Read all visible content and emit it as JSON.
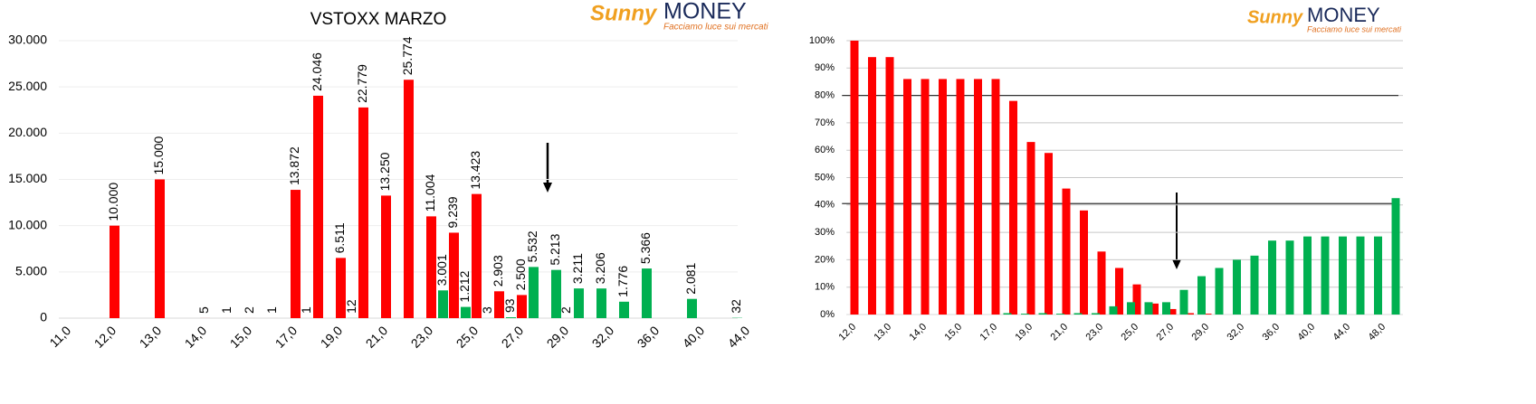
{
  "chart_data": [
    {
      "type": "bar",
      "title": "VSTOXX MARZO",
      "logo": {
        "brand": "Sunny",
        "name": "MONEY",
        "tagline": "Facciamo luce sui mercati"
      },
      "categories": [
        "11,0",
        null,
        "12,0",
        null,
        "13,0",
        null,
        "14,0",
        null,
        "15,0",
        null,
        "17,0",
        null,
        "19,0",
        null,
        "21,0",
        null,
        "23,0",
        null,
        "25,0",
        null,
        "27,0",
        null,
        "29,0",
        null,
        "32,0",
        null,
        "36,0",
        null,
        "40,0",
        null,
        "44,0"
      ],
      "series": [
        {
          "color": "#ff0000",
          "values": [
            null,
            null,
            10000,
            null,
            15000,
            null,
            5,
            1,
            2,
            1,
            13872,
            24046,
            6511,
            22779,
            13250,
            25774,
            11004,
            9239,
            13423,
            2903,
            2500,
            null,
            2,
            null,
            null,
            null,
            null,
            null,
            null,
            null,
            null
          ],
          "value_labels": [
            null,
            null,
            "10.000",
            null,
            "15.000",
            null,
            "5",
            "1",
            "2",
            "1",
            "13.872",
            "24.046",
            "6.511",
            "22.779",
            "13.250",
            "25.774",
            "11.004",
            "9.239",
            "13.423",
            "2.903",
            "2.500",
            null,
            "2",
            null,
            null,
            null,
            null,
            null,
            null,
            null,
            null
          ]
        },
        {
          "color": "#00b050",
          "values": [
            null,
            null,
            null,
            null,
            null,
            null,
            null,
            null,
            null,
            null,
            1,
            null,
            12,
            null,
            null,
            null,
            3001,
            1212,
            3,
            93,
            5532,
            5213,
            3211,
            3206,
            1776,
            5366,
            null,
            2081,
            null,
            32,
            null
          ],
          "value_labels": [
            null,
            null,
            null,
            null,
            null,
            null,
            null,
            null,
            null,
            null,
            "1",
            null,
            "12",
            null,
            null,
            null,
            "3.001",
            "1.212",
            "3",
            "93",
            "5.532",
            "5.213",
            "3.211",
            "3.206",
            "1.776",
            "5.366",
            null,
            "2.081",
            null,
            "32",
            null
          ]
        }
      ],
      "ylim": [
        0,
        30000
      ],
      "yticks": [
        0,
        {
          "value": 5000,
          "label": "5.000"
        },
        {
          "value": 10000,
          "label": "10.000"
        },
        {
          "value": 15000,
          "label": "15.000"
        },
        {
          "value": 20000,
          "label": "20.000"
        },
        {
          "value": 25000,
          "label": "25.000"
        },
        {
          "value": 30000,
          "label": "30.000"
        }
      ],
      "grid": true
    },
    {
      "type": "bar",
      "logo": {
        "brand": "Sunny",
        "name": "MONEY",
        "tagline": "Facciamo luce sui mercati"
      },
      "categories": [
        "12,0",
        null,
        "13,0",
        null,
        "14,0",
        null,
        "15,0",
        null,
        "17,0",
        null,
        "19,0",
        null,
        "21,0",
        null,
        "23,0",
        null,
        "25,0",
        null,
        "27,0",
        null,
        "29,0",
        null,
        "32,0",
        null,
        "36,0",
        null,
        "40,0",
        null,
        "44,0",
        null,
        "48,0"
      ],
      "series": [
        {
          "color": "#ff0000",
          "values": [
            100,
            94,
            94,
            86,
            86,
            86,
            86,
            86,
            86,
            78,
            63,
            59,
            46,
            38,
            23,
            17,
            11,
            4,
            2,
            0.5,
            0.3,
            0,
            0,
            0,
            0,
            0,
            0,
            0,
            0,
            0,
            0
          ]
        },
        {
          "color": "#00b050",
          "values": [
            0,
            0,
            0,
            0,
            0,
            0,
            0,
            0,
            0.5,
            0.3,
            0.5,
            0.3,
            0.5,
            0.5,
            3,
            4.5,
            4.5,
            4.5,
            9,
            14,
            17,
            20,
            21.5,
            27,
            27,
            28.5,
            28.5,
            28.5,
            28.5,
            28.5,
            42.5
          ]
        }
      ],
      "reference_lines": [
        80,
        40.5
      ],
      "ylim": [
        0,
        100
      ],
      "yticks": [
        {
          "value": 0,
          "label": "0%"
        },
        {
          "value": 10,
          "label": "10%"
        },
        {
          "value": 20,
          "label": "20%"
        },
        {
          "value": 30,
          "label": "30%"
        },
        {
          "value": 40,
          "label": "40%"
        },
        {
          "value": 50,
          "label": "50%"
        },
        {
          "value": 60,
          "label": "60%"
        },
        {
          "value": 70,
          "label": "70%"
        },
        {
          "value": 80,
          "label": "80%"
        },
        {
          "value": 90,
          "label": "90%"
        },
        {
          "value": 100,
          "label": "100%"
        }
      ],
      "grid": true
    }
  ]
}
